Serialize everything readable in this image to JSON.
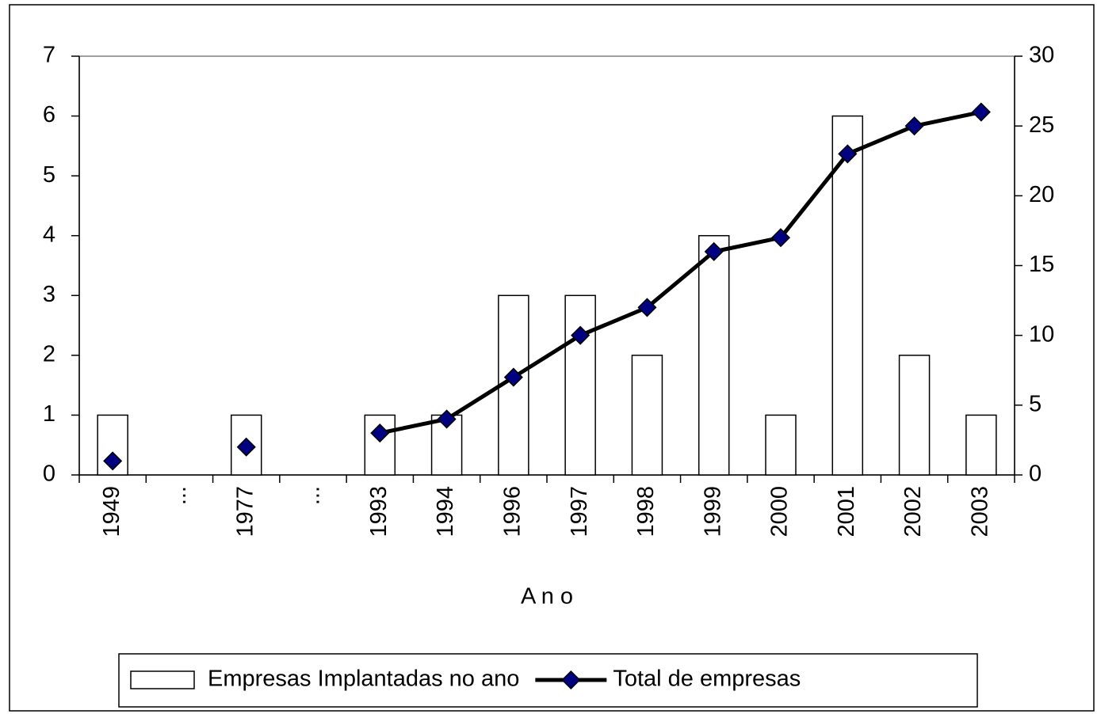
{
  "chart_data": {
    "type": "bar",
    "categories": [
      "1949",
      "...",
      "1977",
      "...",
      "1993",
      "1994",
      "1996",
      "1997",
      "1998",
      "1999",
      "2000",
      "2001",
      "2002",
      "2003"
    ],
    "x_label": "A n o",
    "series": [
      {
        "name": "Empresas Implantadas no ano",
        "type": "bar",
        "color": "#ffffff",
        "values": [
          1,
          null,
          1,
          null,
          1,
          1,
          3,
          3,
          2,
          4,
          1,
          6,
          2,
          1
        ]
      },
      {
        "name": "Total de empresas",
        "type": "line",
        "axis": "y2",
        "color": "#000000",
        "marker_color": "#000080",
        "values": [
          1,
          null,
          2,
          null,
          3,
          4,
          7,
          10,
          12,
          16,
          17,
          23,
          25,
          26
        ]
      }
    ],
    "ylim": [
      0,
      7
    ],
    "yticks": [
      0,
      1,
      2,
      3,
      4,
      5,
      6,
      7
    ],
    "y2lim": [
      0,
      30
    ],
    "y2ticks": [
      0,
      5,
      10,
      15,
      20,
      25,
      30
    ],
    "legend": "bottom"
  }
}
